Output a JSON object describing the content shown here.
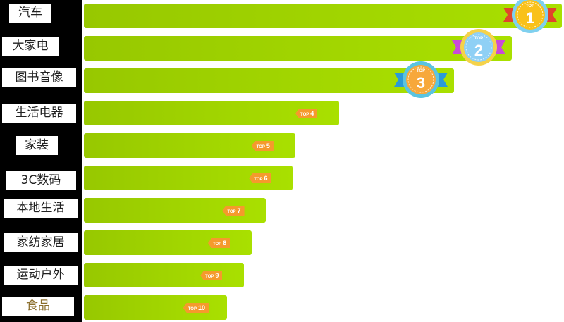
{
  "chart_data": {
    "type": "bar",
    "orientation": "horizontal",
    "categories": [
      "汽车",
      "大家电",
      "图书音像",
      "生活电器",
      "家装",
      "3C数码",
      "本地生活",
      "家纺家居",
      "运动户外",
      "食品"
    ],
    "values": [
      100,
      89.5,
      77.4,
      53.4,
      44.2,
      43.7,
      38.1,
      35.1,
      33.5,
      29.9
    ],
    "ranks": [
      "1",
      "2",
      "3",
      "4",
      "5",
      "6",
      "7",
      "8",
      "9",
      "10"
    ],
    "rank_prefix": "TOP",
    "grid": false,
    "label_colors": [
      "#222222",
      "#222222",
      "#222222",
      "#222222",
      "#222222",
      "#222222",
      "#222222",
      "#222222",
      "#222222",
      "#8a6d2b"
    ],
    "medal_colors": [
      {
        "fill": "#f9c11a",
        "ring": "#7fd0ef",
        "ribbon": "#e0452b"
      },
      {
        "fill": "#8fd0f5",
        "ring": "#f5d24a",
        "ribbon": "#c94ad8"
      },
      {
        "fill": "#f7a83b",
        "ring": "#5bc4e0",
        "ribbon": "#2a9ad8"
      }
    ],
    "tag_color": "#f59a2c",
    "bar_color": "#a2d600"
  }
}
